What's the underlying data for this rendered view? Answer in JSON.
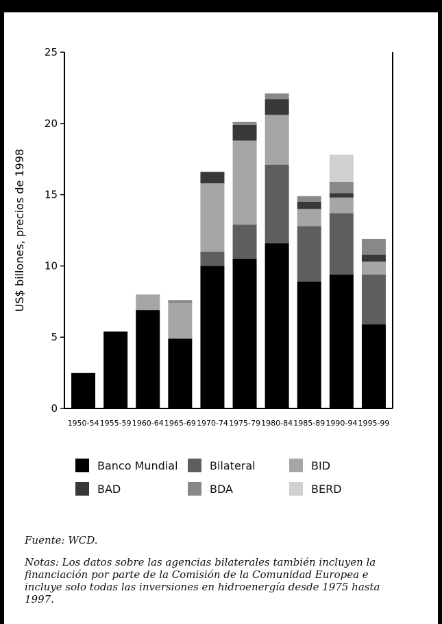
{
  "chart_data": {
    "type": "bar",
    "stacked": true,
    "categories": [
      "1950-54",
      "1955-59",
      "1960-64",
      "1965-69",
      "1970-74",
      "1975-79",
      "1980-84",
      "1985-89",
      "1990-94",
      "1995-99"
    ],
    "series": [
      {
        "name": "Banco Mundial",
        "color": "#000000",
        "values": [
          2.5,
          5.4,
          6.9,
          4.9,
          10.0,
          10.5,
          11.6,
          8.9,
          9.4,
          5.9
        ]
      },
      {
        "name": "Bilateral",
        "color": "#5e5e5e",
        "values": [
          0,
          0,
          0,
          0,
          1.0,
          2.4,
          5.5,
          3.9,
          4.3,
          3.5
        ]
      },
      {
        "name": "BID",
        "color": "#a6a6a6",
        "values": [
          0,
          0,
          1.1,
          2.5,
          4.8,
          5.9,
          3.5,
          1.2,
          1.1,
          0.9
        ]
      },
      {
        "name": "BAD",
        "color": "#383838",
        "values": [
          0,
          0,
          0,
          0,
          0.8,
          1.1,
          1.1,
          0.5,
          0.3,
          0.5
        ]
      },
      {
        "name": "BDA",
        "color": "#888888",
        "values": [
          0,
          0,
          0,
          0.2,
          0,
          0.2,
          0.4,
          0.4,
          0.8,
          1.1
        ]
      },
      {
        "name": "BERD",
        "color": "#d0d0d0",
        "values": [
          0,
          0,
          0,
          0,
          0,
          0,
          0,
          0,
          1.9,
          0
        ]
      }
    ],
    "ylabel": "US$ billones, precios de 1998",
    "ylim": [
      0,
      25
    ],
    "yticks": [
      0,
      5,
      10,
      15,
      20,
      25
    ],
    "grid": false
  },
  "legend_rows": [
    [
      {
        "label": "Banco Mundial",
        "color": "#000000"
      },
      {
        "label": "Bilateral",
        "color": "#5e5e5e"
      },
      {
        "label": "BID",
        "color": "#a6a6a6"
      }
    ],
    [
      {
        "label": "BAD",
        "color": "#383838"
      },
      {
        "label": "BDA",
        "color": "#888888"
      },
      {
        "label": "BERD",
        "color": "#d0d0d0"
      }
    ]
  ],
  "source": "Fuente: WCD.",
  "notes": "Notas: Los datos sobre las agencias bilaterales también incluyen la financiación por parte de la Comisión de la Comunidad Europea e incluye solo todas las inversiones en hidroenergía desde 1975 hasta 1997."
}
